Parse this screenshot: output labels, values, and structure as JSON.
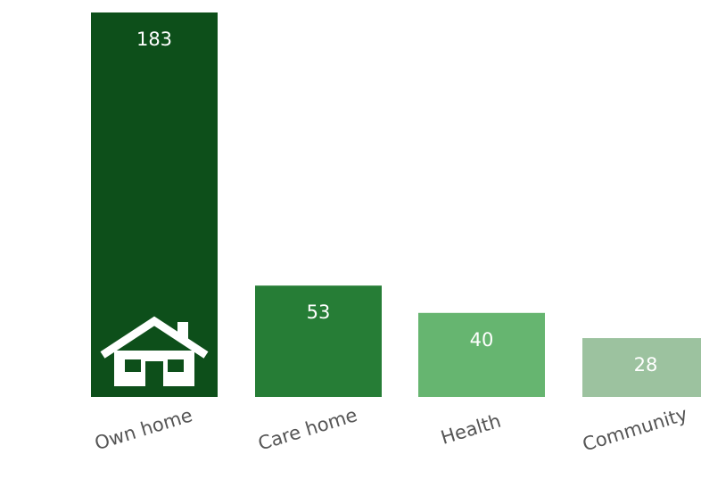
{
  "chart_data": {
    "type": "bar",
    "categories": [
      "Own home",
      "Care home",
      "Health",
      "Community"
    ],
    "values": [
      183,
      53,
      40,
      28
    ],
    "colors": [
      "#0d4f1a",
      "#267d36",
      "#66b570",
      "#9cc29f"
    ],
    "title": "",
    "xlabel": "",
    "ylabel": "",
    "ylim": [
      0,
      183
    ],
    "grid": false,
    "legend": "none",
    "bar_value_labels": true,
    "icon": "house-icon"
  }
}
